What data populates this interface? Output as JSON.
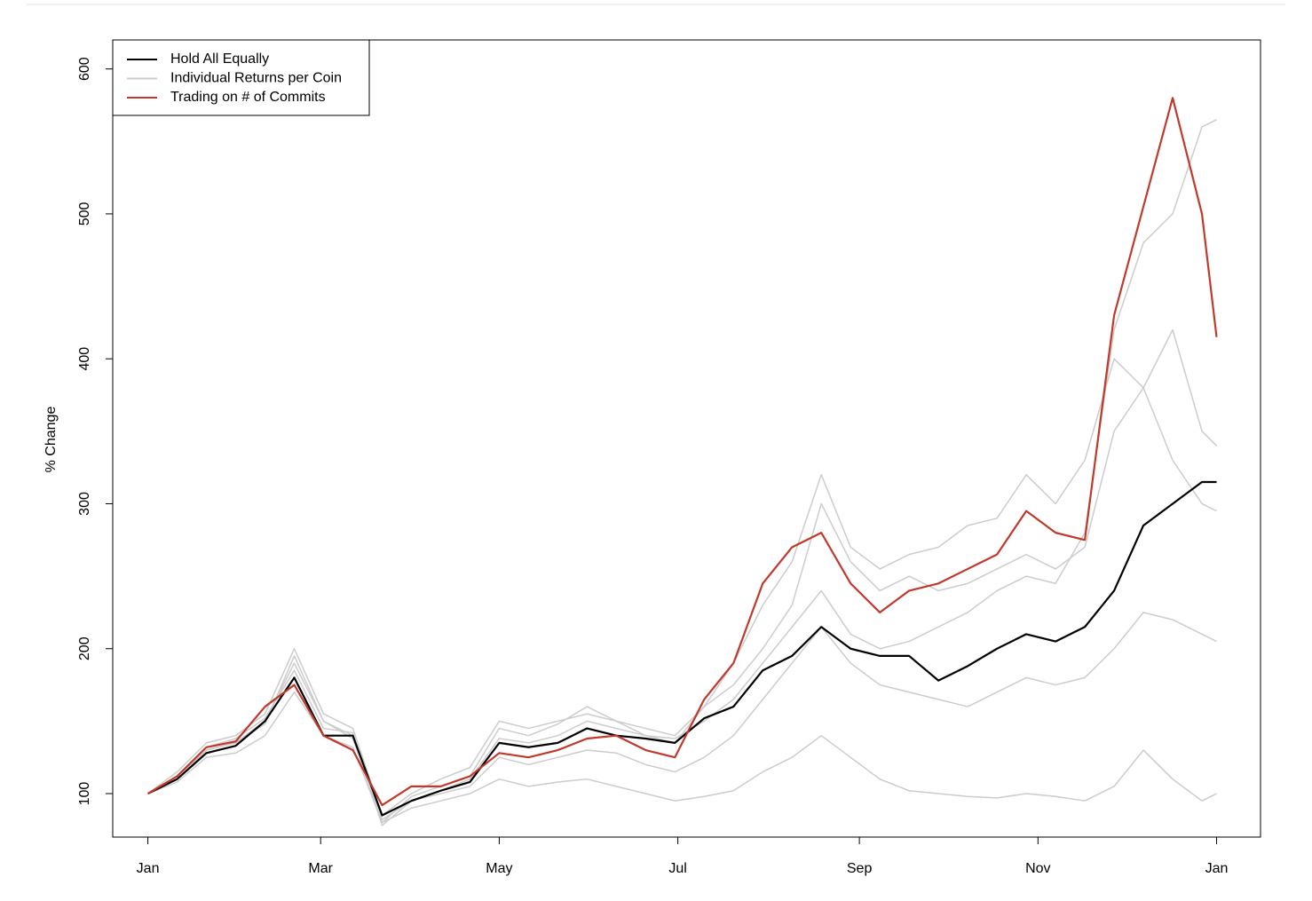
{
  "chart_data": {
    "type": "line",
    "ylabel": "% Change",
    "x": [
      0,
      10,
      20,
      30,
      40,
      50,
      60,
      70,
      80,
      90,
      100,
      110,
      120,
      130,
      140,
      150,
      160,
      170,
      180,
      190,
      200,
      210,
      220,
      230,
      240,
      250,
      260,
      270,
      280,
      290,
      300,
      310,
      320,
      330,
      340,
      350,
      360,
      365
    ],
    "xlim": [
      -12,
      380
    ],
    "xticks": [
      {
        "value": 0,
        "label": "Jan"
      },
      {
        "value": 59,
        "label": "Mar"
      },
      {
        "value": 120,
        "label": "May"
      },
      {
        "value": 181,
        "label": "Jul"
      },
      {
        "value": 243,
        "label": "Sep"
      },
      {
        "value": 304,
        "label": "Nov"
      },
      {
        "value": 365,
        "label": "Jan"
      }
    ],
    "ylim": [
      70,
      620
    ],
    "yticks": [
      100,
      200,
      300,
      400,
      500,
      600
    ],
    "legend": "top-left",
    "series": [
      {
        "name": "Hold All Equally",
        "color": "#000000",
        "values": [
          100,
          110,
          128,
          133,
          150,
          180,
          140,
          140,
          85,
          95,
          102,
          108,
          135,
          132,
          135,
          145,
          140,
          138,
          135,
          152,
          160,
          185,
          195,
          215,
          200,
          195,
          195,
          178,
          188,
          200,
          210,
          205,
          215,
          240,
          285,
          300,
          315,
          315
        ]
      },
      {
        "name": "Individual Returns per Coin",
        "color": "#cccccc",
        "values": [
          100,
          108,
          125,
          128,
          140,
          170,
          140,
          132,
          80,
          90,
          95,
          100,
          110,
          105,
          108,
          110,
          105,
          100,
          95,
          98,
          102,
          115,
          125,
          140,
          125,
          110,
          102,
          100,
          98,
          97,
          100,
          98,
          95,
          105,
          130,
          110,
          95,
          100
        ]
      },
      {
        "color": "#cccccc",
        "values": [
          100,
          112,
          130,
          135,
          150,
          190,
          150,
          140,
          82,
          95,
          100,
          105,
          125,
          120,
          125,
          130,
          128,
          120,
          115,
          125,
          140,
          165,
          190,
          215,
          190,
          175,
          170,
          165,
          160,
          170,
          180,
          175,
          180,
          200,
          225,
          220,
          210,
          205
        ]
      },
      {
        "color": "#cccccc",
        "values": [
          100,
          115,
          135,
          140,
          155,
          200,
          155,
          145,
          85,
          100,
          110,
          118,
          150,
          145,
          150,
          155,
          150,
          145,
          140,
          160,
          175,
          200,
          230,
          300,
          260,
          240,
          250,
          240,
          245,
          255,
          265,
          255,
          270,
          350,
          380,
          330,
          300,
          295
        ]
      },
      {
        "color": "#cccccc",
        "values": [
          100,
          110,
          130,
          135,
          148,
          195,
          150,
          138,
          80,
          98,
          105,
          112,
          145,
          140,
          148,
          160,
          150,
          140,
          138,
          150,
          165,
          190,
          215,
          240,
          210,
          200,
          205,
          215,
          225,
          240,
          250,
          245,
          280,
          420,
          480,
          500,
          560,
          565
        ]
      },
      {
        "color": "#cccccc",
        "values": [
          100,
          112,
          132,
          138,
          152,
          185,
          145,
          142,
          78,
          95,
          102,
          110,
          138,
          135,
          140,
          150,
          145,
          140,
          135,
          160,
          190,
          230,
          260,
          320,
          270,
          255,
          265,
          270,
          285,
          290,
          320,
          300,
          330,
          400,
          380,
          420,
          350,
          340
        ]
      },
      {
        "name": "Trading on # of Commits",
        "color": "#c0392b",
        "values": [
          100,
          112,
          132,
          136,
          160,
          175,
          140,
          130,
          92,
          105,
          105,
          112,
          128,
          125,
          130,
          138,
          140,
          130,
          125,
          165,
          190,
          245,
          270,
          280,
          245,
          225,
          240,
          245,
          255,
          265,
          295,
          280,
          275,
          430,
          505,
          580,
          500,
          415
        ]
      }
    ]
  }
}
